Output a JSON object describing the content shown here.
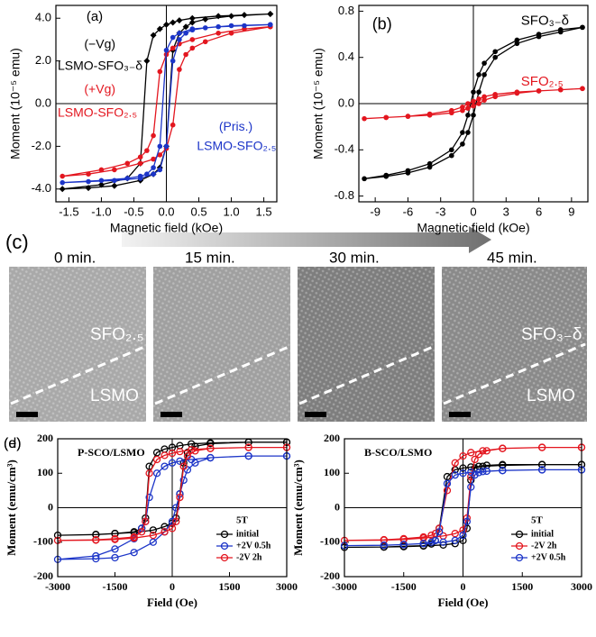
{
  "chart_data": [
    {
      "type": "line",
      "xlabel": "Magnetic field (kOe)",
      "ylabel": "Moment (10⁻⁵ emu)",
      "xlim": [
        -1.7,
        1.7
      ],
      "xticks": [
        {
          "value": -1.5,
          "label": "-1.5"
        },
        {
          "value": -1,
          "label": "-1.0"
        },
        -0.5,
        {
          "value": 0,
          "label": "0.0"
        },
        0.5,
        {
          "value": 1,
          "label": "1.0"
        },
        1.5
      ],
      "ylim": [
        -4.6,
        4.6
      ],
      "yticks": [
        {
          "value": -4,
          "label": "-4.0"
        },
        {
          "value": -2,
          "label": "-2.0"
        },
        {
          "value": 0,
          "label": "0.0"
        },
        {
          "value": 2,
          "label": "2.0"
        },
        {
          "value": 4,
          "label": "4.0"
        }
      ],
      "annotations": [
        "(a)",
        "(−Vg)",
        "LSMO-SFO₃₋δ",
        "(+Vg)",
        "LSMO-SFO₂.₅",
        "(Pris.)",
        "LSMO-SFO₂.₅"
      ],
      "x": [
        1.6,
        1.2,
        0.8,
        0.4,
        0.2,
        0.1,
        0,
        -0.1,
        -0.2,
        -0.3,
        -0.4,
        -0.6,
        -1.0,
        -1.6,
        -1.2,
        -0.8,
        -0.4,
        -0.2,
        -0.1,
        0,
        0.1,
        0.2,
        0.3,
        0.4,
        0.6,
        1.0,
        1.6
      ],
      "series": [
        {
          "color": "#000000",
          "values": [
            4.2,
            4.15,
            4.1,
            4.0,
            3.9,
            3.8,
            3.7,
            3.5,
            3.2,
            2.0,
            -2.8,
            -3.5,
            -3.8,
            -4.0,
            -3.95,
            -3.85,
            -3.6,
            -3.3,
            -3.0,
            -2.0,
            2.5,
            3.3,
            3.6,
            3.8,
            3.95,
            4.1,
            4.2
          ]
        },
        {
          "color": "#e3161f",
          "values": [
            3.6,
            3.5,
            3.3,
            3.0,
            2.8,
            2.6,
            2.3,
            1.5,
            -1.5,
            -2.2,
            -2.5,
            -2.8,
            -3.1,
            -3.4,
            -3.3,
            -3.1,
            -2.8,
            -2.6,
            -2.4,
            -2.1,
            -1.0,
            1.6,
            2.3,
            2.6,
            2.9,
            3.3,
            3.6
          ]
        },
        {
          "color": "#1c35c8",
          "values": [
            3.7,
            3.65,
            3.6,
            3.5,
            3.3,
            3.1,
            2.5,
            -2.0,
            -3.0,
            -3.3,
            -3.4,
            -3.5,
            -3.6,
            -3.7,
            -3.65,
            -3.6,
            -3.5,
            -3.3,
            -3.1,
            -2.0,
            2.0,
            3.0,
            3.3,
            3.45,
            3.55,
            3.65,
            3.7
          ]
        }
      ]
    },
    {
      "type": "line",
      "xlabel": "Magnetic field (kOe)",
      "ylabel": "Moment (10⁻⁵ emu)",
      "xlim": [
        -10.5,
        10.5
      ],
      "xticks": [
        -9,
        -6,
        -3,
        0,
        3,
        6,
        9
      ],
      "ylim": [
        -0.85,
        0.85
      ],
      "yticks": [
        -0.8,
        -0.4,
        {
          "value": 0,
          "label": "0.0"
        },
        0.4,
        0.8
      ],
      "annotations": [
        "(b)",
        "SFO₃₋δ",
        "SFO₂.₅"
      ],
      "x": [
        10,
        8,
        6,
        4,
        2,
        1,
        0.5,
        0,
        -0.5,
        -1,
        -2,
        -4,
        -6,
        -8,
        -10,
        -8,
        -6,
        -4,
        -2,
        -1,
        -0.5,
        0,
        0.5,
        1,
        2,
        4,
        6,
        8,
        10
      ],
      "series": [
        {
          "color": "#000000",
          "values": [
            0.66,
            0.64,
            0.6,
            0.55,
            0.45,
            0.35,
            0.25,
            0.1,
            -0.1,
            -0.25,
            -0.4,
            -0.52,
            -0.58,
            -0.62,
            -0.65,
            -0.63,
            -0.6,
            -0.55,
            -0.45,
            -0.35,
            -0.25,
            -0.1,
            0.1,
            0.25,
            0.4,
            0.52,
            0.58,
            0.62,
            0.66
          ]
        },
        {
          "color": "#e3161f",
          "values": [
            0.13,
            0.12,
            0.11,
            0.1,
            0.08,
            0.06,
            0.04,
            0.02,
            0,
            -0.03,
            -0.06,
            -0.09,
            -0.11,
            -0.12,
            -0.13,
            -0.12,
            -0.11,
            -0.1,
            -0.08,
            -0.06,
            -0.04,
            -0.02,
            0,
            0.03,
            0.06,
            0.09,
            0.11,
            0.12,
            0.13
          ]
        }
      ]
    },
    {
      "type": "line",
      "title": "P-SCO/LSMO",
      "xlabel": "Field (Oe)",
      "ylabel": "Moment (emu/cm³)",
      "xlim": [
        -3000,
        3000
      ],
      "xticks": [
        -3000,
        -1500,
        0,
        1500,
        3000
      ],
      "ylim": [
        -200,
        200
      ],
      "yticks": [
        -200,
        -100,
        0,
        100,
        200
      ],
      "legend_title": "5T",
      "legend": "lower right",
      "x": [
        3000,
        2000,
        1000,
        500,
        200,
        0,
        -200,
        -400,
        -600,
        -700,
        -800,
        -1000,
        -1500,
        -2000,
        -3000,
        -2000,
        -1500,
        -1000,
        -500,
        -200,
        0,
        100,
        200,
        300,
        400,
        600,
        1000,
        2000,
        3000
      ],
      "series": [
        {
          "name": "initial",
          "color": "#000000",
          "values": [
            190,
            190,
            188,
            185,
            180,
            175,
            170,
            160,
            120,
            -30,
            -60,
            -70,
            -75,
            -78,
            -80,
            -78,
            -75,
            -72,
            -65,
            -55,
            -45,
            -30,
            40,
            130,
            160,
            178,
            186,
            190,
            190
          ]
        },
        {
          "name": "+2V 0.5h",
          "color": "#1c35c8",
          "values": [
            150,
            150,
            145,
            140,
            135,
            130,
            120,
            100,
            30,
            -40,
            -60,
            -90,
            -120,
            -140,
            -150,
            -148,
            -145,
            -130,
            -100,
            -70,
            -40,
            0,
            40,
            80,
            110,
            130,
            145,
            150,
            150
          ]
        },
        {
          "name": "-2V  2h",
          "color": "#e3161f",
          "values": [
            175,
            175,
            172,
            168,
            163,
            158,
            152,
            140,
            100,
            -40,
            -70,
            -85,
            -90,
            -93,
            -95,
            -94,
            -92,
            -88,
            -80,
            -70,
            -60,
            -40,
            30,
            120,
            150,
            165,
            172,
            175,
            175
          ]
        }
      ]
    },
    {
      "type": "line",
      "title": "B-SCO/LSMO",
      "xlabel": "Field (Oe)",
      "ylabel": "Moment (emu/cm³)",
      "xlim": [
        -3000,
        3000
      ],
      "xticks": [
        -3000,
        -1500,
        0,
        1500,
        3000
      ],
      "ylim": [
        -200,
        200
      ],
      "yticks": [
        -200,
        -100,
        0,
        100,
        200
      ],
      "legend_title": "5T",
      "legend": "lower right",
      "x": [
        3000,
        2000,
        1000,
        500,
        200,
        0,
        -200,
        -400,
        -600,
        -700,
        -800,
        -1000,
        -1500,
        -2000,
        -3000,
        -2000,
        -1500,
        -1000,
        -500,
        -200,
        0,
        100,
        200,
        300,
        400,
        600,
        1000,
        2000,
        3000
      ],
      "series": [
        {
          "name": "initial",
          "color": "#000000",
          "values": [
            125,
            125,
            123,
            120,
            118,
            115,
            110,
            90,
            -60,
            -95,
            -105,
            -110,
            -112,
            -114,
            -115,
            -114,
            -113,
            -111,
            -108,
            -104,
            -95,
            -60,
            80,
            115,
            120,
            123,
            125,
            125,
            125
          ]
        },
        {
          "name": "-2V 2h",
          "color": "#e3161f",
          "values": [
            175,
            175,
            172,
            165,
            160,
            150,
            130,
            50,
            -60,
            -75,
            -80,
            -85,
            -90,
            -93,
            -95,
            -94,
            -92,
            -88,
            -82,
            -75,
            -65,
            -30,
            90,
            140,
            155,
            165,
            172,
            175,
            175
          ]
        },
        {
          "name": "+2V 0.5h",
          "color": "#1c35c8",
          "values": [
            110,
            110,
            108,
            105,
            103,
            100,
            95,
            70,
            -70,
            -95,
            -100,
            -104,
            -107,
            -109,
            -110,
            -109,
            -107,
            -104,
            -100,
            -95,
            -80,
            -40,
            60,
            95,
            102,
            106,
            108,
            110,
            110
          ]
        }
      ]
    }
  ],
  "panel_c": {
    "label": "(c)",
    "times": [
      "0 min.",
      "15 min.",
      "30 min.",
      "45 min."
    ],
    "labels": [
      "SFO₂.₅",
      "LSMO",
      "SFO₃₋δ",
      "LSMO"
    ]
  }
}
